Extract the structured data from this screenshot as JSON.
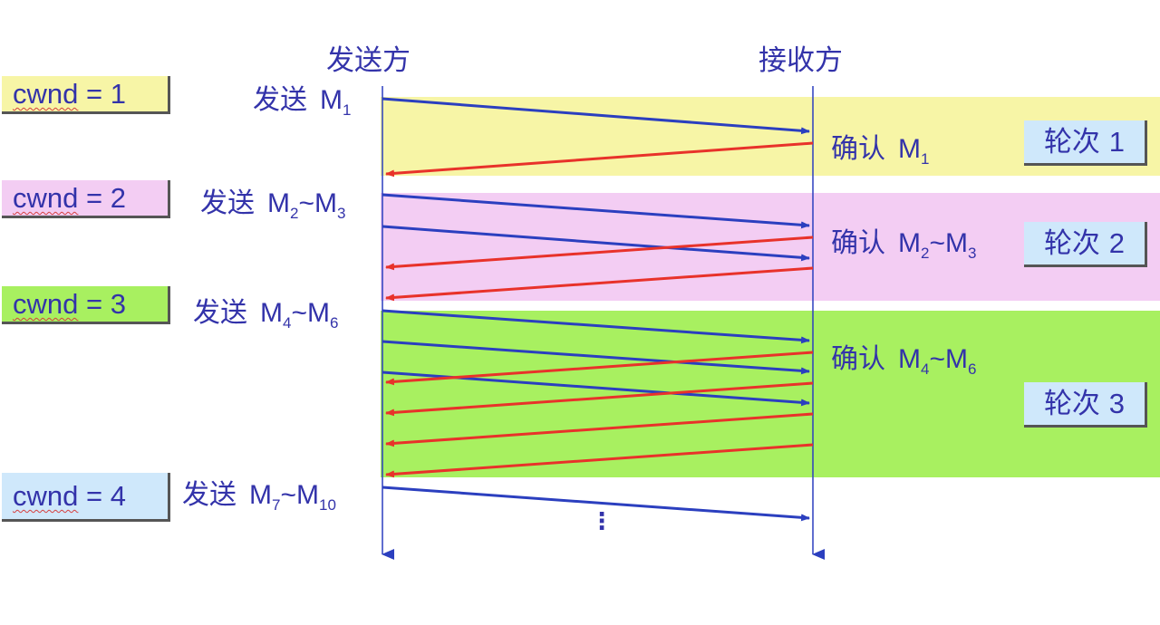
{
  "header": {
    "sender": "发送方",
    "receiver": "接收方"
  },
  "cwnd": [
    {
      "label": "cwnd",
      "eq": " = 1",
      "color": "#f7f5a6"
    },
    {
      "label": "cwnd",
      "eq": " = 2",
      "color": "#f3cdf3"
    },
    {
      "label": "cwnd",
      "eq": " = 3",
      "color": "#a8f060"
    },
    {
      "label": "cwnd",
      "eq": " = 4",
      "color": "#cfe8fb"
    }
  ],
  "sends": [
    {
      "verb": "发送",
      "m1": "M",
      "s1": "1",
      "tilde": "",
      "m2": "",
      "s2": ""
    },
    {
      "verb": "发送",
      "m1": "M",
      "s1": "2",
      "tilde": "~",
      "m2": "M",
      "s2": "3"
    },
    {
      "verb": "发送",
      "m1": "M",
      "s1": "4",
      "tilde": "~",
      "m2": "M",
      "s2": "6"
    },
    {
      "verb": "发送",
      "m1": "M",
      "s1": "7",
      "tilde": "~",
      "m2": "M",
      "s2": "10"
    }
  ],
  "acks": [
    {
      "verb": "确认",
      "m1": "M",
      "s1": "1",
      "tilde": "",
      "m2": "",
      "s2": ""
    },
    {
      "verb": "确认",
      "m1": "M",
      "s1": "2",
      "tilde": "~",
      "m2": "M",
      "s2": "3"
    },
    {
      "verb": "确认",
      "m1": "M",
      "s1": "4",
      "tilde": "~",
      "m2": "M",
      "s2": "6"
    }
  ],
  "rounds": [
    {
      "text": "轮次",
      "num": "1"
    },
    {
      "text": "轮次",
      "num": "2"
    },
    {
      "text": "轮次",
      "num": "3"
    }
  ],
  "ellipsis": "⋮",
  "colors": {
    "round1": "#f7f5a6",
    "round2": "#f3cdf3",
    "round3": "#a8f060",
    "data_arrow": "#2b3fbf",
    "ack_arrow": "#e8322a",
    "timeline": "#2b3fbf",
    "text": "#3333aa"
  }
}
